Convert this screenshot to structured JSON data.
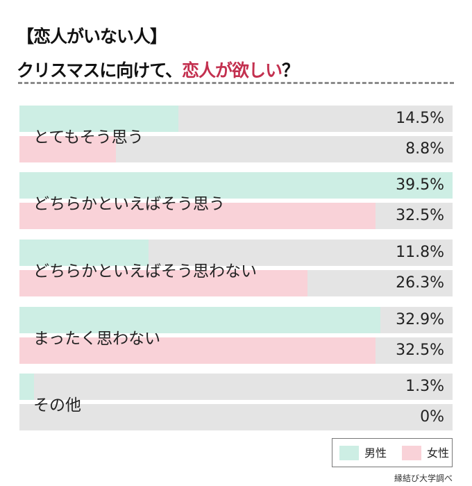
{
  "title_line1": "【恋人がいない人】",
  "title_line2_plain": "クリスマスに向けて、",
  "title_line2_highlight": "恋人が欲しい",
  "title_line2_end": "？",
  "source": "縁結び大学調べ",
  "colors": {
    "male": "#cdeee4",
    "female": "#f9d2d8",
    "track": "#e4e4e4",
    "highlight": "#c3304f"
  },
  "chart_data": {
    "type": "bar",
    "orientation": "horizontal",
    "categories": [
      "とてもそう思う",
      "どちらかといえばそう思う",
      "どちらかといえばそう思わない",
      "まったく思わない",
      "その他"
    ],
    "series": [
      {
        "name": "男性",
        "values": [
          14.5,
          39.5,
          11.8,
          32.9,
          1.3
        ],
        "labels": [
          "14.5%",
          "39.5%",
          "11.8%",
          "32.9%",
          "1.3%"
        ]
      },
      {
        "name": "女性",
        "values": [
          8.8,
          32.5,
          26.3,
          32.5,
          0
        ],
        "labels": [
          "8.8%",
          "32.5%",
          "26.3%",
          "32.5%",
          "0%"
        ]
      }
    ],
    "unit": "%",
    "xlim": [
      0,
      39.5
    ],
    "legend": "bottom-right",
    "grid": false
  }
}
